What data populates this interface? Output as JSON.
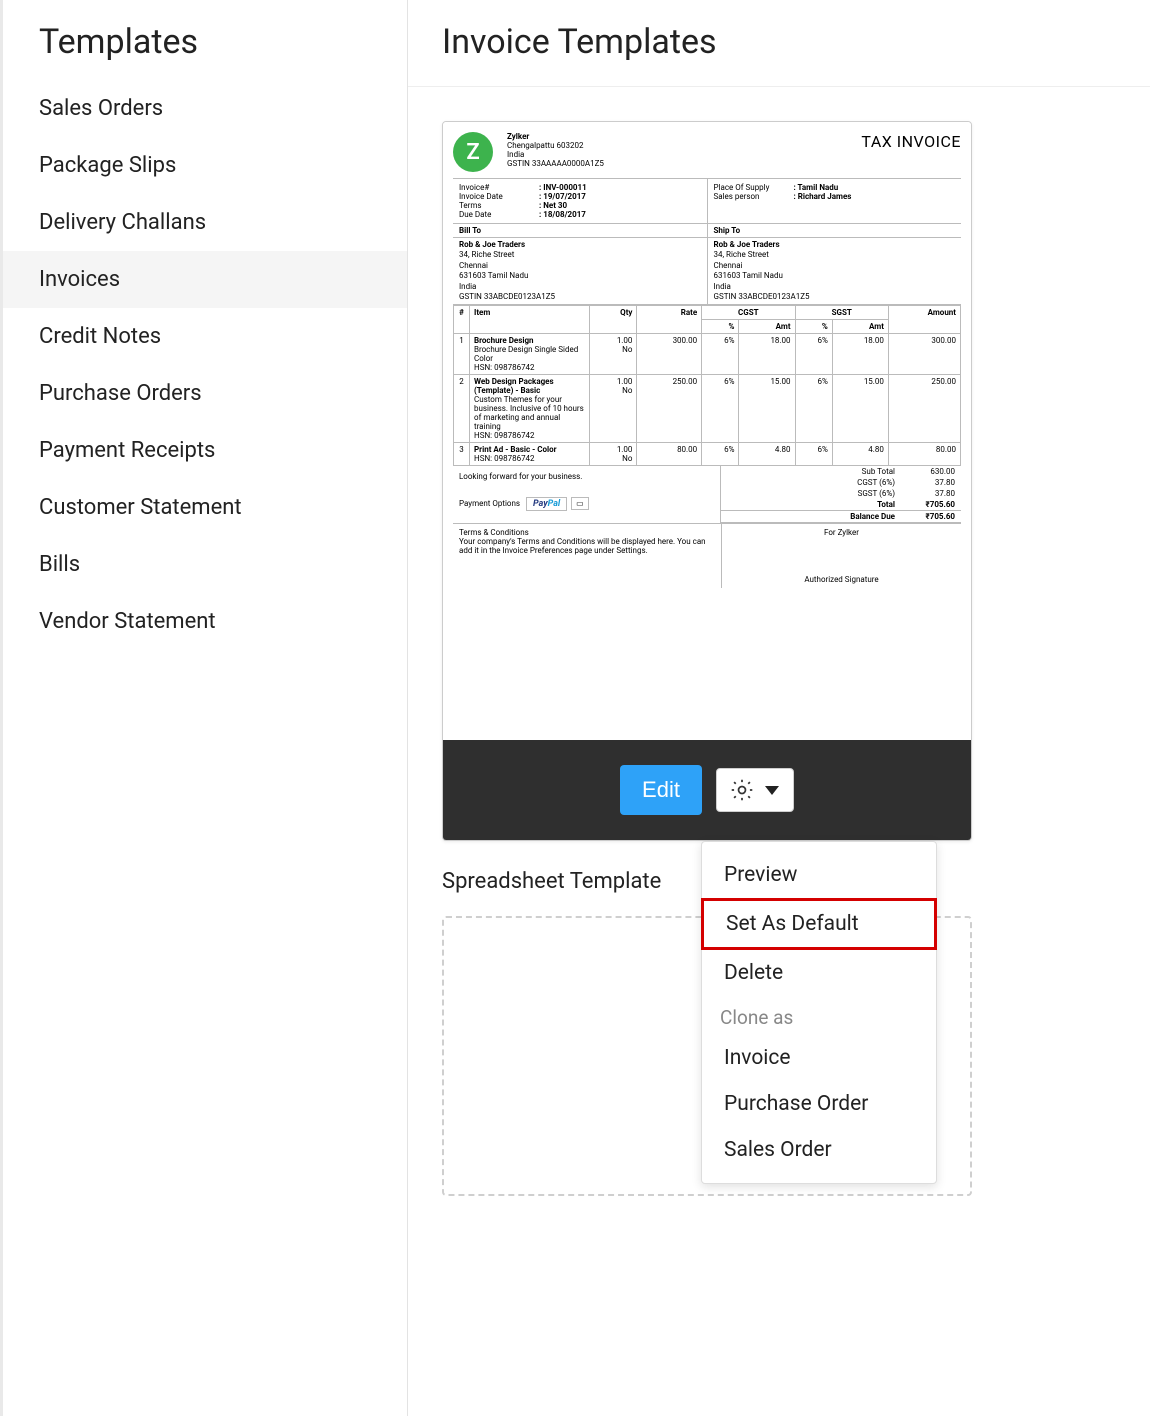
{
  "sidebar": {
    "title": "Templates",
    "items": [
      {
        "label": "Sales Orders"
      },
      {
        "label": "Package Slips"
      },
      {
        "label": "Delivery Challans"
      },
      {
        "label": "Invoices",
        "active": true
      },
      {
        "label": "Credit Notes"
      },
      {
        "label": "Purchase Orders"
      },
      {
        "label": "Payment Receipts"
      },
      {
        "label": "Customer Statement"
      },
      {
        "label": "Bills"
      },
      {
        "label": "Vendor Statement"
      }
    ]
  },
  "main": {
    "title": "Invoice Templates",
    "edit_label": "Edit",
    "section_label": "Spreadsheet Template"
  },
  "dropdown": {
    "preview": "Preview",
    "set_default": "Set As Default",
    "delete": "Delete",
    "clone_as": "Clone as",
    "invoice": "Invoice",
    "purchase_order": "Purchase Order",
    "sales_order": "Sales Order"
  },
  "colors": {
    "edit_btn": "#2ea2f8",
    "action_bar_bg": "#2f2f2f",
    "logo_green": "#3db34d",
    "highlight_border": "#d40000",
    "sidebar_active_bg": "#f5f5f5"
  },
  "invoice": {
    "logo_letter": "Z",
    "company": {
      "name": "Zylker",
      "addr": "Chengalpattu  603202",
      "country": "India",
      "gstin": "GSTIN 33AAAAA0000A1Z5"
    },
    "title": "TAX INVOICE",
    "meta_left": [
      {
        "label": "Invoice#",
        "value": ": INV-000011"
      },
      {
        "label": "Invoice Date",
        "value": ": 19/07/2017"
      },
      {
        "label": "Terms",
        "value": ": Net 30"
      },
      {
        "label": "Due Date",
        "value": ": 18/08/2017"
      }
    ],
    "meta_right": [
      {
        "label": "Place Of Supply",
        "value": ": Tamil Nadu"
      },
      {
        "label": "Sales person",
        "value": ": Richard James"
      }
    ],
    "bill_to_label": "Bill To",
    "ship_to_label": "Ship To",
    "address": {
      "name": "Rob & Joe Traders",
      "line1": "34, Riche Street",
      "city": "Chennai",
      "state": "631603 Tamil Nadu",
      "country": "India",
      "gstin": "GSTIN 33ABCDE0123A1Z5"
    },
    "table": {
      "headers": {
        "idx": "#",
        "item": "Item",
        "qty": "Qty",
        "rate": "Rate",
        "cgst": "CGST",
        "sgst": "SGST",
        "pct": "%",
        "amt": "Amt",
        "amount": "Amount"
      },
      "rows": [
        {
          "idx": "1",
          "name": "Brochure Design",
          "desc": "Brochure Design Single Sided Color",
          "hsn": "HSN: 098786742",
          "qty": "1.00",
          "no": "No",
          "rate": "300.00",
          "cgst_pct": "6%",
          "cgst_amt": "18.00",
          "sgst_pct": "6%",
          "sgst_amt": "18.00",
          "amount": "300.00"
        },
        {
          "idx": "2",
          "name": "Web Design Packages (Template) - Basic",
          "desc": "Custom Themes for your business. Inclusive of 10 hours of marketing and annual training",
          "hsn": "HSN: 098786742",
          "qty": "1.00",
          "no": "No",
          "rate": "250.00",
          "cgst_pct": "6%",
          "cgst_amt": "15.00",
          "sgst_pct": "6%",
          "sgst_amt": "15.00",
          "amount": "250.00"
        },
        {
          "idx": "3",
          "name": "Print Ad - Basic - Color",
          "desc": "",
          "hsn": "HSN: 098786742",
          "qty": "1.00",
          "no": "No",
          "rate": "80.00",
          "cgst_pct": "6%",
          "cgst_amt": "4.80",
          "sgst_pct": "6%",
          "sgst_amt": "4.80",
          "amount": "80.00"
        }
      ]
    },
    "looking_fwd": "Looking forward for your business.",
    "payment_options_label": "Payment Options",
    "paypal": "PayPal",
    "totals": [
      {
        "label": "Sub Total",
        "value": "630.00"
      },
      {
        "label": "CGST (6%)",
        "value": "37.80"
      },
      {
        "label": "SGST (6%)",
        "value": "37.80"
      },
      {
        "label": "Total",
        "value": "₹705.60",
        "bold": true
      },
      {
        "label": "Balance Due",
        "value": "₹705.60",
        "balance": true
      }
    ],
    "terms_label": "Terms & Conditions",
    "terms_text": "Your company's Terms and Conditions will be displayed here. You can add it in the Invoice Preferences page under Settings.",
    "for_company": "For Zylker",
    "auth_sig": "Authorized Signature"
  }
}
